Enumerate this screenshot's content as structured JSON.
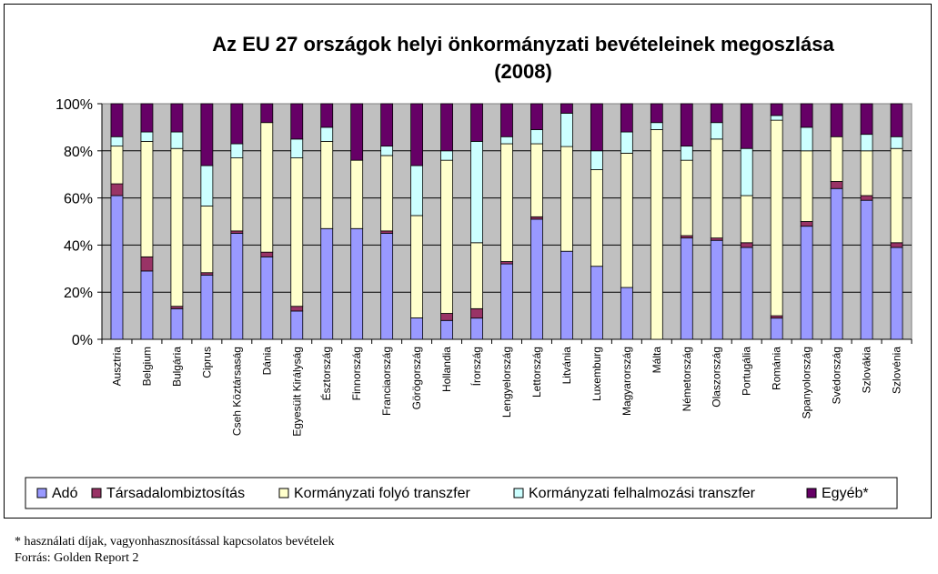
{
  "chart_data": {
    "type": "bar",
    "stacked": true,
    "title_lines": [
      "Az EU 27 országok helyi önkormányzati bevételeinek megoszlása",
      "(2008)"
    ],
    "xlabel": "",
    "ylabel": "",
    "ylim": [
      0,
      100
    ],
    "yticks": [
      "0%",
      "20%",
      "40%",
      "60%",
      "80%",
      "100%"
    ],
    "grid": true,
    "legend_position": "bottom",
    "categories": [
      "Ausztria",
      "Belgium",
      "Bulgária",
      "Ciprus",
      "Cseh Köztársaság",
      "Dánia",
      "Egyesült Királyság",
      "Észtország",
      "Finnország",
      "Franciaország",
      "Görögország",
      "Hollandia",
      "Írország",
      "Lengyelország",
      "Lettország",
      "Litvánia",
      "Luxemburg",
      "Magyarország",
      "Málta",
      "Németország",
      "Olaszország",
      "Portugália",
      "Románia",
      "Spanyolország",
      "Svédország",
      "Szlovákia",
      "Szlovénia"
    ],
    "series": [
      {
        "name": "Adó",
        "color": "#9999ff",
        "values": [
          61,
          29,
          13,
          27,
          45,
          35,
          12,
          47,
          47,
          45,
          9,
          8,
          9,
          32,
          51,
          37,
          31,
          22,
          0,
          43,
          42,
          39,
          9,
          48,
          64,
          59,
          39
        ]
      },
      {
        "name": "Társadalombiztosítás",
        "color": "#993366",
        "values": [
          5,
          6,
          1,
          1,
          1,
          2,
          2,
          0,
          0,
          1,
          0,
          3,
          4,
          1,
          1,
          0,
          0,
          0,
          0,
          1,
          1,
          2,
          1,
          2,
          3,
          2,
          2
        ]
      },
      {
        "name": "Kormányzati folyó transzfer",
        "color": "#ffffcc",
        "values": [
          16,
          49,
          67,
          28,
          31,
          55,
          63,
          37,
          29,
          32,
          43,
          65,
          28,
          50,
          31,
          44,
          41,
          57,
          89,
          32,
          42,
          20,
          83,
          30,
          19,
          19,
          40
        ]
      },
      {
        "name": "Kormányzati felhalmozási transzfer",
        "color": "#ccffff",
        "values": [
          4,
          4,
          7,
          17,
          6,
          0,
          8,
          6,
          0,
          4,
          21,
          4,
          43,
          3,
          6,
          14,
          8,
          9,
          3,
          6,
          7,
          20,
          2,
          10,
          0,
          7,
          5
        ]
      },
      {
        "name": "Egyéb*",
        "color": "#660066",
        "values": [
          14,
          12,
          12,
          26,
          17,
          8,
          15,
          10,
          24,
          18,
          26,
          20,
          16,
          14,
          11,
          4,
          20,
          12,
          8,
          18,
          8,
          19,
          5,
          10,
          14,
          13,
          14
        ]
      }
    ]
  },
  "footnote": {
    "note": "* használati díjak, vagyonhasznosítással kapcsolatos bevételek",
    "source": "Forrás: Golden Report 2"
  }
}
